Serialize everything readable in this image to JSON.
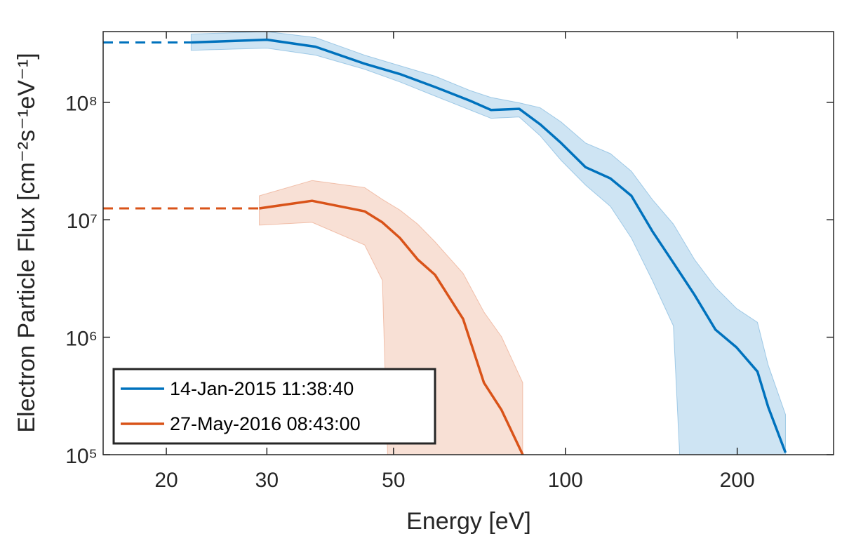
{
  "chart_data": {
    "type": "line",
    "xlabel": "Energy [eV]",
    "ylabel": "Electron Particle Flux [cm⁻²s⁻¹eV⁻¹]",
    "xscale": "log",
    "yscale": "log",
    "xlim": [
      15.5,
      295
    ],
    "ylim": [
      100000,
      400000000
    ],
    "xticks": [
      20,
      30,
      50,
      100,
      200
    ],
    "yticks": [
      {
        "value": 100000,
        "label": "10⁵"
      },
      {
        "value": 1000000,
        "label": "10⁶"
      },
      {
        "value": 10000000,
        "label": "10⁷"
      },
      {
        "value": 100000000,
        "label": "10⁸"
      }
    ],
    "legend": "lower left",
    "series": [
      {
        "name": "14-Jan-2015 11:38:40",
        "color": "#0072bd",
        "band_color": "#a6cdea",
        "x": [
          22.1,
          30,
          36.5,
          44.5,
          51.3,
          59.1,
          68.1,
          74.1,
          83.0,
          90.3,
          98.3,
          108.5,
          119.9,
          130.5,
          142,
          154.6,
          168.3,
          183.2,
          199.4,
          217,
          226.6,
          243
        ],
        "values": [
          323000000,
          341000000,
          297000000,
          213000000,
          174000000,
          135000000,
          103000000,
          86000000,
          88000000,
          65000000,
          45000000,
          28000000,
          22500000,
          16000000,
          8000000,
          4300000,
          2300000,
          1160000,
          820000,
          510000,
          255000,
          104000
        ],
        "upper": [
          381000000,
          400000000,
          356000000,
          252000000,
          205000000,
          167000000,
          126000000,
          110000000,
          99000000,
          90000000,
          68000000,
          45000000,
          36600000,
          25900000,
          14900000,
          9200000,
          4600000,
          2660000,
          1760000,
          1340000,
          580000,
          220000
        ],
        "lower": [
          277000000,
          289000000,
          252000000,
          191000000,
          149000000,
          113000000,
          86000000,
          73000000,
          75000000,
          52000000,
          32000000,
          19700000,
          13000000,
          6980000,
          3050000,
          1250000,
          null,
          null,
          null,
          null,
          null,
          null
        ]
      },
      {
        "name": "27-May-2016 08:43:00",
        "color": "#d95319",
        "band_color": "#f3c6b3",
        "x": [
          29.1,
          36.0,
          44.5,
          47.8,
          51.3,
          55.1,
          59.1,
          66.2,
          72.0,
          77.3,
          84.2
        ],
        "values": [
          12500000,
          14500000,
          11800000,
          9500000,
          7000000,
          4600000,
          3400000,
          1430000,
          410000,
          240000,
          100000
        ],
        "upper": [
          16000000,
          21600000,
          18800000,
          14900000,
          12100000,
          9200000,
          6500000,
          3500000,
          1640000,
          1010000,
          410000
        ],
        "lower": [
          9000000,
          9500000,
          6100000,
          3050000,
          null,
          null,
          null,
          null,
          null,
          null,
          null
        ]
      }
    ]
  }
}
